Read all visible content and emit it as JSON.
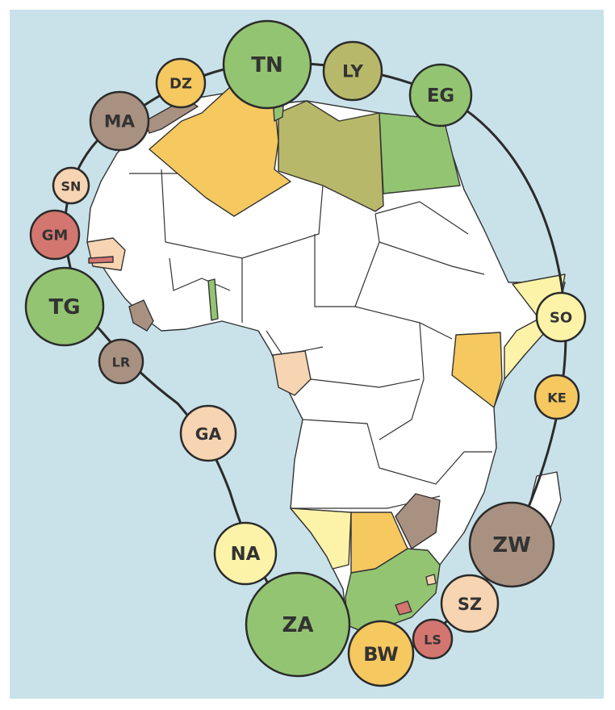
{
  "colors": {
    "background": "#c9e2ea",
    "land": "#ffffff",
    "green": "#93c472",
    "olive": "#b8b86a",
    "orange": "#f5c860",
    "brown": "#a99182",
    "peach": "#f7d4b2",
    "yellow": "#fdf3a8",
    "red": "#d3766f",
    "ring": "#2b2b2b"
  },
  "bubbles": [
    {
      "code": "TN",
      "color": "green"
    },
    {
      "code": "LY",
      "color": "olive"
    },
    {
      "code": "EG",
      "color": "green"
    },
    {
      "code": "DZ",
      "color": "orange"
    },
    {
      "code": "MA",
      "color": "brown"
    },
    {
      "code": "SN",
      "color": "peach"
    },
    {
      "code": "GM",
      "color": "red"
    },
    {
      "code": "TG",
      "color": "green"
    },
    {
      "code": "LR",
      "color": "brown"
    },
    {
      "code": "GA",
      "color": "peach"
    },
    {
      "code": "NA",
      "color": "yellow"
    },
    {
      "code": "ZA",
      "color": "green"
    },
    {
      "code": "BW",
      "color": "orange"
    },
    {
      "code": "LS",
      "color": "red"
    },
    {
      "code": "SZ",
      "color": "peach"
    },
    {
      "code": "ZW",
      "color": "brown"
    },
    {
      "code": "KE",
      "color": "orange"
    },
    {
      "code": "SO",
      "color": "yellow"
    }
  ]
}
